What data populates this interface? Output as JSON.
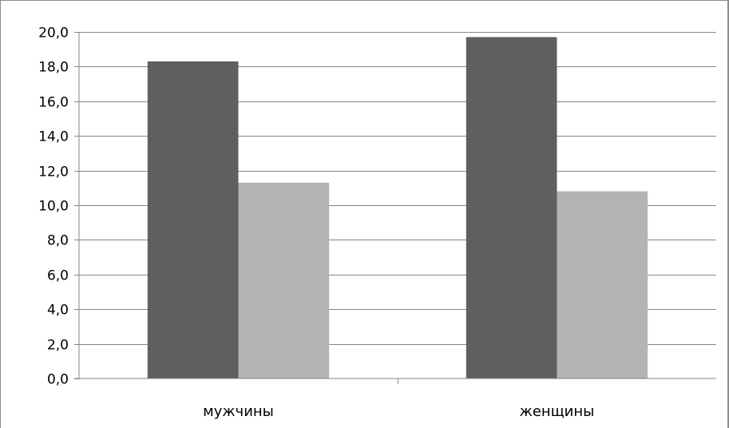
{
  "chart_data": {
    "type": "bar",
    "categories": [
      "мужчины",
      "женщины"
    ],
    "series": [
      {
        "values": [
          18.3,
          19.7
        ],
        "color": "#5f5f5f"
      },
      {
        "values": [
          11.3,
          10.8
        ],
        "color": "#b3b3b3"
      }
    ],
    "ylim": [
      0,
      20
    ],
    "yticks": [
      0,
      2,
      4,
      6,
      8,
      10,
      12,
      14,
      16,
      18,
      20
    ],
    "ytick_labels": [
      "0,0",
      "2,0",
      "4,0",
      "6,0",
      "8,0",
      "10,0",
      "12,0",
      "14,0",
      "16,0",
      "18,0",
      "20,0"
    ],
    "grid": true,
    "legend": "none"
  }
}
